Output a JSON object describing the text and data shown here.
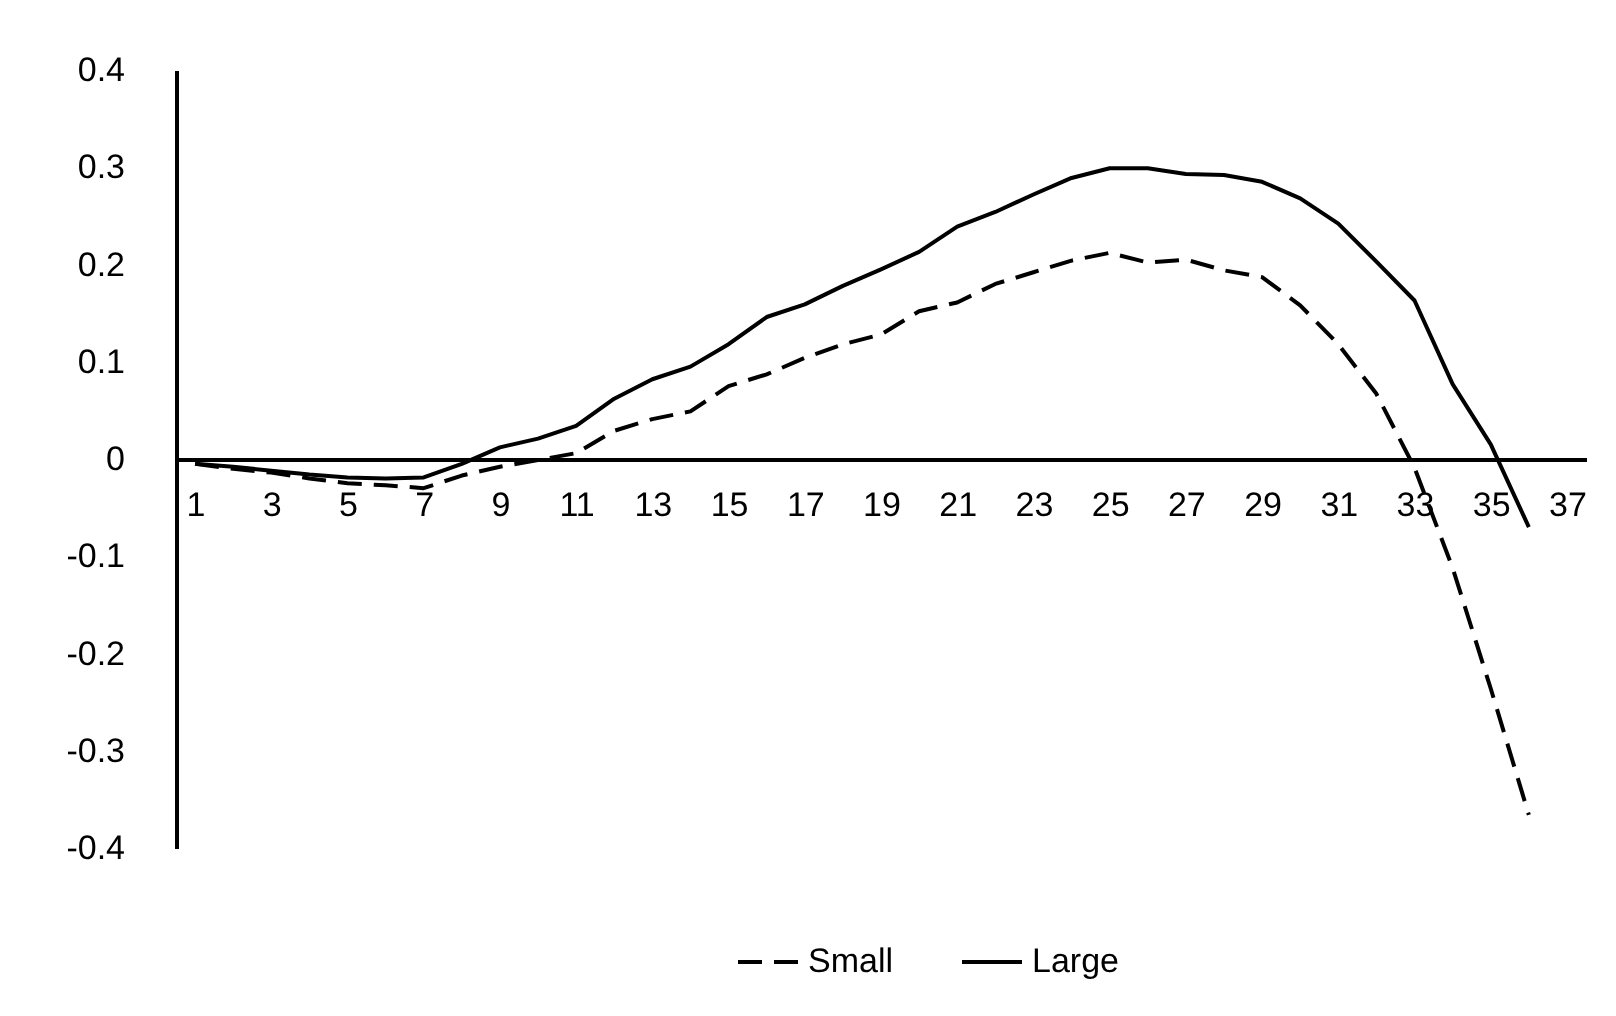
{
  "chart_data": {
    "type": "line",
    "x": [
      1,
      2,
      3,
      4,
      5,
      6,
      7,
      8,
      9,
      10,
      11,
      12,
      13,
      14,
      15,
      16,
      17,
      18,
      19,
      20,
      21,
      22,
      23,
      24,
      25,
      26,
      27,
      28,
      29,
      30,
      31,
      32,
      33,
      34,
      35,
      36
    ],
    "series": [
      {
        "name": "Small",
        "color": "#000000",
        "line_style": "dashed",
        "values": [
          -0.005,
          -0.01,
          -0.014,
          -0.02,
          -0.025,
          -0.027,
          -0.03,
          -0.017,
          -0.008,
          -0.001,
          0.006,
          0.029,
          0.041,
          0.049,
          0.075,
          0.087,
          0.104,
          0.118,
          0.128,
          0.152,
          0.161,
          0.18,
          0.192,
          0.204,
          0.212,
          0.202,
          0.205,
          0.194,
          0.187,
          0.158,
          0.118,
          0.067,
          -0.009,
          -0.112,
          -0.236,
          -0.366
        ]
      },
      {
        "name": "Large",
        "color": "#000000",
        "line_style": "solid",
        "values": [
          -0.005,
          -0.008,
          -0.012,
          -0.016,
          -0.019,
          -0.02,
          -0.019,
          -0.005,
          0.012,
          0.021,
          0.034,
          0.062,
          0.082,
          0.095,
          0.118,
          0.146,
          0.159,
          0.178,
          0.195,
          0.213,
          0.239,
          0.254,
          0.272,
          0.289,
          0.299,
          0.299,
          0.293,
          0.292,
          0.285,
          0.268,
          0.242,
          0.203,
          0.163,
          0.077,
          0.015,
          -0.07
        ]
      }
    ],
    "xlim": [
      0.5,
      37.5
    ],
    "xticks": [
      1,
      3,
      5,
      7,
      9,
      11,
      13,
      15,
      17,
      19,
      21,
      23,
      25,
      27,
      29,
      31,
      33,
      35,
      37
    ],
    "ylim": [
      -0.4,
      0.4
    ],
    "yticks": [
      -0.4,
      -0.3,
      -0.2,
      -0.1,
      0,
      0.1,
      0.2,
      0.3,
      0.4
    ],
    "grid": false,
    "legend": "bottom"
  }
}
